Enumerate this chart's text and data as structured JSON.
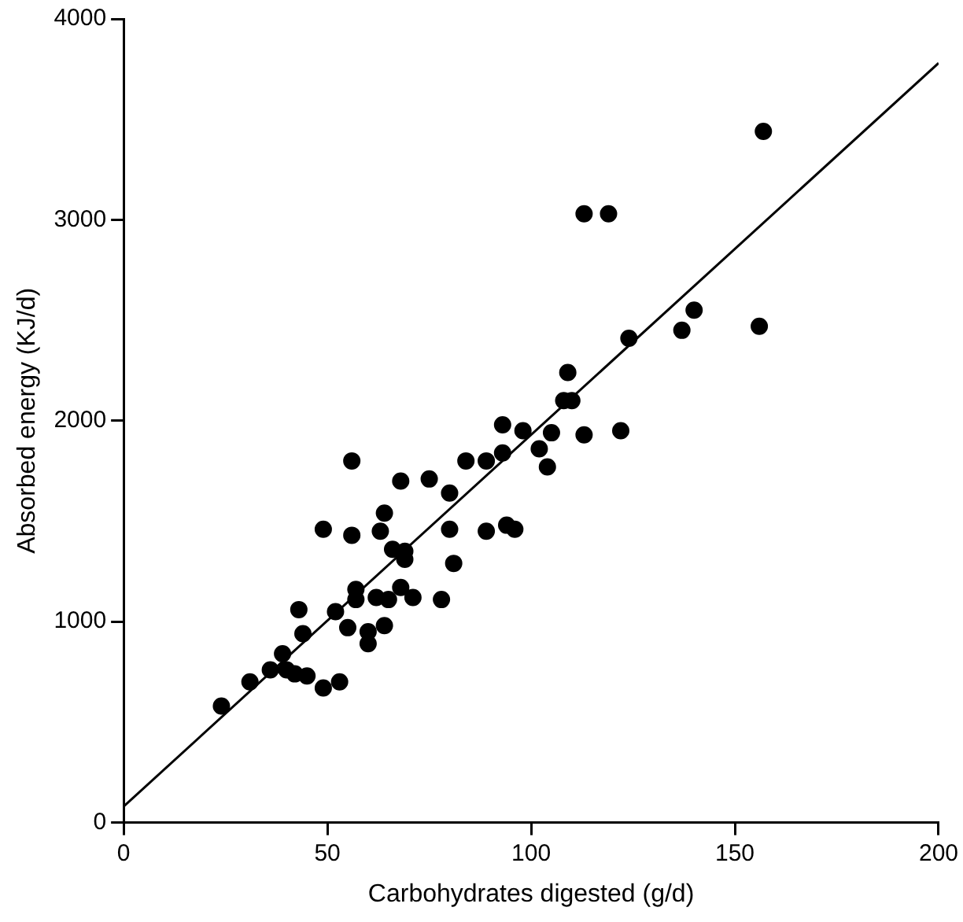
{
  "chart_data": {
    "type": "scatter",
    "xlabel": "Carbohydrates digested (g/d)",
    "ylabel": "Absorbed energy (KJ/d)",
    "xlim": [
      0,
      200
    ],
    "xticks": [
      0,
      50,
      100,
      150,
      200
    ],
    "ylim": [
      0,
      4000
    ],
    "yticks": [
      0,
      1000,
      2000,
      3000,
      4000
    ],
    "grid": false,
    "legend": false,
    "marker": "circle",
    "series": [
      {
        "color": "#000000",
        "x": [
          24,
          31,
          36,
          39,
          40,
          42,
          43,
          44,
          45,
          49,
          49,
          52,
          53,
          55,
          56,
          56,
          57,
          57,
          60,
          60,
          62,
          63,
          64,
          64,
          65,
          66,
          68,
          68,
          69,
          69,
          71,
          75,
          78,
          80,
          80,
          81,
          84,
          89,
          89,
          93,
          93,
          94,
          96,
          98,
          102,
          104,
          105,
          109,
          108,
          110,
          113,
          113,
          119,
          122,
          124,
          137,
          140,
          156,
          157
        ],
        "values": [
          580,
          700,
          760,
          840,
          760,
          740,
          1060,
          940,
          730,
          670,
          1460,
          1050,
          700,
          970,
          1800,
          1430,
          1160,
          1110,
          950,
          890,
          1120,
          1450,
          1540,
          980,
          1110,
          1360,
          1700,
          1170,
          1310,
          1350,
          1120,
          1710,
          1110,
          1460,
          1640,
          1290,
          1800,
          1800,
          1450,
          1840,
          1980,
          1480,
          1460,
          1950,
          1860,
          1770,
          1940,
          2240,
          2100,
          2100,
          3030,
          1930,
          3030,
          1950,
          2410,
          2450,
          2550,
          2470,
          3440
        ]
      },
      {
        "type": "line",
        "color": "#000000",
        "x": [
          0,
          200
        ],
        "values": [
          80,
          3780
        ],
        "marker": "none"
      }
    ]
  }
}
